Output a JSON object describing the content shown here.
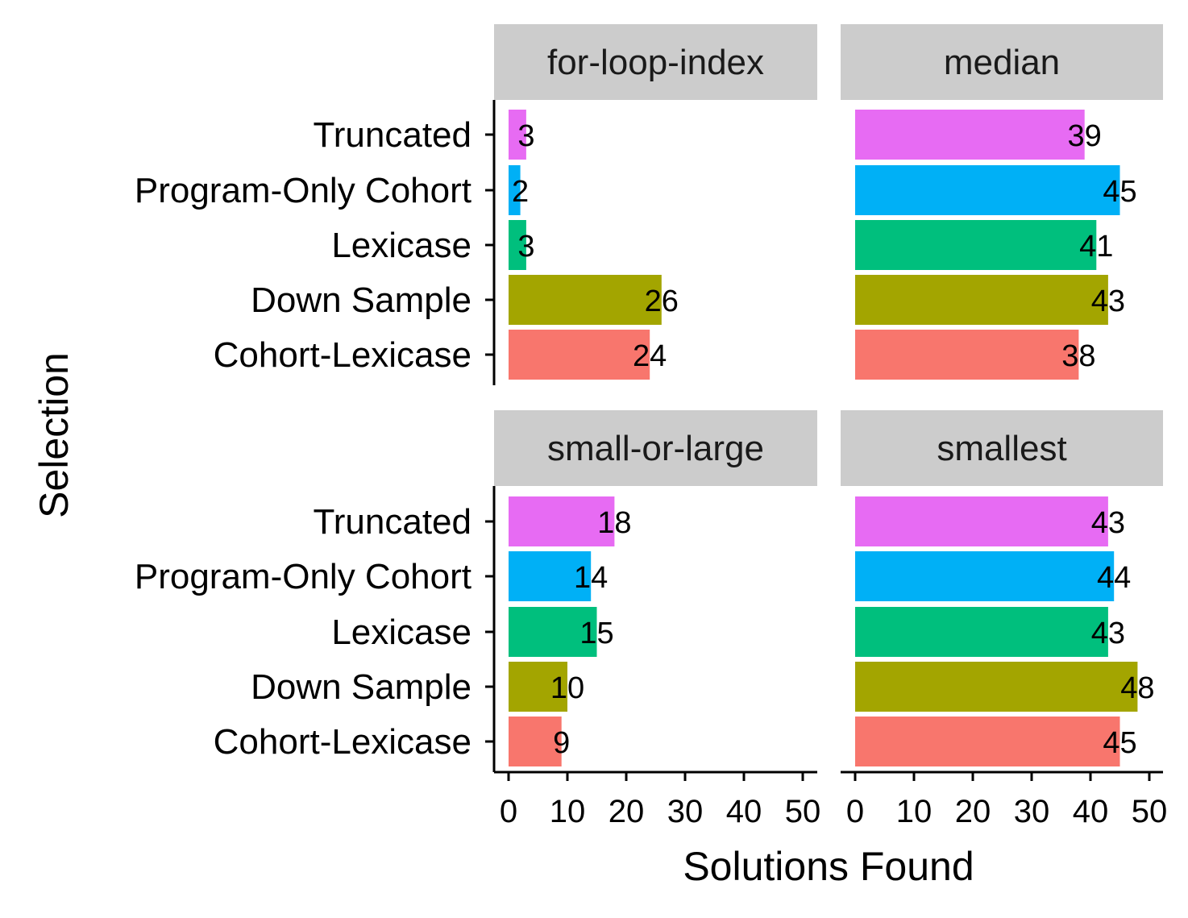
{
  "chart_data": {
    "type": "bar",
    "orientation": "horizontal",
    "xlabel": "Solutions Found",
    "ylabel": "Selection",
    "xlim": [
      0,
      50
    ],
    "xticks": [
      0,
      10,
      20,
      30,
      40,
      50
    ],
    "categories": [
      "Truncated",
      "Program-Only Cohort",
      "Lexicase",
      "Down Sample",
      "Cohort-Lexicase"
    ],
    "category_colors": [
      "#E76BF3",
      "#00B0F6",
      "#00BF7D",
      "#A3A500",
      "#F8766D"
    ],
    "strip_color": "#CCCCCC",
    "data_labels": true,
    "grid": false,
    "legend": "none",
    "panels": [
      {
        "title": "for-loop-index",
        "values": [
          3,
          2,
          3,
          26,
          24
        ]
      },
      {
        "title": "median",
        "values": [
          39,
          45,
          41,
          43,
          38
        ]
      },
      {
        "title": "small-or-large",
        "values": [
          18,
          14,
          15,
          10,
          9
        ]
      },
      {
        "title": "smallest",
        "values": [
          43,
          44,
          43,
          48,
          45
        ]
      }
    ]
  }
}
